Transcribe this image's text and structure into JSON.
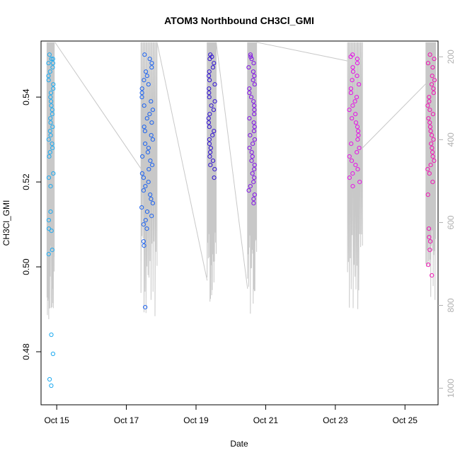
{
  "chart_data": {
    "type": "scatter",
    "title": "ATOM3 Northbound CH3Cl_GMI",
    "xlabel": "Date",
    "ylabel": "CH3Cl_GMI",
    "xlim_days": [
      14.55,
      25.95
    ],
    "ylim": [
      0.4675,
      0.5532
    ],
    "y2lim": [
      1040,
      162
    ],
    "x_ticks": [
      {
        "day": 15,
        "label": "Oct 15"
      },
      {
        "day": 17,
        "label": "Oct 17"
      },
      {
        "day": 19,
        "label": "Oct 19"
      },
      {
        "day": 21,
        "label": "Oct 21"
      },
      {
        "day": 23,
        "label": "Oct 23"
      },
      {
        "day": 25,
        "label": "Oct 25"
      }
    ],
    "y_ticks": [
      {
        "value": 0.48,
        "label": "0.48"
      },
      {
        "value": 0.5,
        "label": "0.50"
      },
      {
        "value": 0.52,
        "label": "0.52"
      },
      {
        "value": 0.54,
        "label": "0.54"
      }
    ],
    "y2_ticks": [
      {
        "value": 200,
        "label": "200"
      },
      {
        "value": 400,
        "label": "400"
      },
      {
        "value": 600,
        "label": "600"
      },
      {
        "value": 800,
        "label": "800"
      },
      {
        "value": 1000,
        "label": "1000"
      }
    ],
    "colors": {
      "background": "#ffffff",
      "axis": "#000000",
      "altitude_line": "#c8c8c8",
      "right_axis": "#b0b0b0"
    },
    "flights": [
      {
        "center_day": 14.83,
        "color": "#1eaaf0",
        "t_start": 14.72,
        "t_end": 14.93,
        "pressure_min": 165,
        "pressure_max": 840,
        "values": [
          0.55,
          0.549,
          0.549,
          0.548,
          0.548,
          0.547,
          0.546,
          0.545,
          0.544,
          0.543,
          0.542,
          0.541,
          0.54,
          0.539,
          0.538,
          0.537,
          0.536,
          0.535,
          0.534,
          0.533,
          0.532,
          0.531,
          0.53,
          0.529,
          0.528,
          0.527,
          0.526,
          0.522,
          0.521,
          0.519,
          0.513,
          0.511,
          0.509,
          0.5085,
          0.504,
          0.503,
          0.484,
          0.4795,
          0.4735,
          0.472
        ]
      },
      {
        "center_day": 17.6,
        "color": "#1e64f0",
        "t_start": 17.42,
        "t_end": 17.88,
        "pressure_min": 165,
        "pressure_max": 840,
        "values": [
          0.55,
          0.549,
          0.548,
          0.547,
          0.546,
          0.545,
          0.544,
          0.543,
          0.542,
          0.541,
          0.54,
          0.539,
          0.538,
          0.537,
          0.536,
          0.535,
          0.534,
          0.533,
          0.532,
          0.531,
          0.53,
          0.529,
          0.528,
          0.527,
          0.526,
          0.525,
          0.524,
          0.523,
          0.522,
          0.521,
          0.52,
          0.519,
          0.518,
          0.517,
          0.516,
          0.515,
          0.514,
          0.513,
          0.512,
          0.511,
          0.51,
          0.509,
          0.506,
          0.505,
          0.4905
        ]
      },
      {
        "center_day": 19.45,
        "color": "#3214d2",
        "t_start": 19.32,
        "t_end": 19.58,
        "pressure_min": 165,
        "pressure_max": 800,
        "values": [
          0.55,
          0.5495,
          0.549,
          0.548,
          0.547,
          0.546,
          0.545,
          0.544,
          0.543,
          0.542,
          0.541,
          0.54,
          0.539,
          0.538,
          0.537,
          0.536,
          0.535,
          0.534,
          0.533,
          0.532,
          0.531,
          0.53,
          0.529,
          0.528,
          0.527,
          0.526,
          0.525,
          0.524,
          0.523,
          0.521
        ]
      },
      {
        "center_day": 20.6,
        "color": "#8214e6",
        "t_start": 20.48,
        "t_end": 20.74,
        "pressure_min": 165,
        "pressure_max": 820,
        "values": [
          0.55,
          0.5495,
          0.549,
          0.548,
          0.547,
          0.546,
          0.545,
          0.544,
          0.543,
          0.542,
          0.541,
          0.54,
          0.539,
          0.538,
          0.537,
          0.536,
          0.535,
          0.534,
          0.533,
          0.532,
          0.531,
          0.53,
          0.529,
          0.528,
          0.527,
          0.526,
          0.525,
          0.524,
          0.523,
          0.522,
          0.521,
          0.52,
          0.519,
          0.518,
          0.517,
          0.516,
          0.515
        ]
      },
      {
        "center_day": 23.55,
        "color": "#e614e6",
        "t_start": 23.35,
        "t_end": 23.78,
        "pressure_min": 165,
        "pressure_max": 810,
        "values": [
          0.55,
          0.5495,
          0.549,
          0.548,
          0.547,
          0.546,
          0.545,
          0.544,
          0.543,
          0.542,
          0.541,
          0.54,
          0.539,
          0.538,
          0.537,
          0.536,
          0.535,
          0.534,
          0.533,
          0.532,
          0.531,
          0.53,
          0.529,
          0.528,
          0.527,
          0.526,
          0.525,
          0.524,
          0.523,
          0.522,
          0.521,
          0.52,
          0.519
        ]
      },
      {
        "center_day": 25.75,
        "color": "#f014b4",
        "t_start": 25.6,
        "t_end": 25.88,
        "pressure_min": 165,
        "pressure_max": 790,
        "values": [
          0.55,
          0.549,
          0.548,
          0.547,
          0.545,
          0.544,
          0.543,
          0.542,
          0.541,
          0.54,
          0.539,
          0.538,
          0.537,
          0.536,
          0.535,
          0.534,
          0.533,
          0.532,
          0.531,
          0.53,
          0.529,
          0.528,
          0.527,
          0.526,
          0.525,
          0.524,
          0.523,
          0.522,
          0.52,
          0.517,
          0.509,
          0.507,
          0.506,
          0.504,
          0.5005,
          0.498
        ]
      }
    ],
    "transit_lines": [
      {
        "from_day": 14.95,
        "from_pressure": 165,
        "to_day": 17.42,
        "to_pressure": 470
      },
      {
        "from_day": 17.88,
        "from_pressure": 165,
        "to_day": 19.32,
        "to_pressure": 740
      },
      {
        "from_day": 19.58,
        "from_pressure": 165,
        "to_day": 20.48,
        "to_pressure": 760
      },
      {
        "from_day": 20.74,
        "from_pressure": 165,
        "to_day": 23.35,
        "to_pressure": 210
      },
      {
        "from_day": 23.78,
        "from_pressure": 420,
        "to_day": 25.6,
        "to_pressure": 265
      }
    ]
  }
}
